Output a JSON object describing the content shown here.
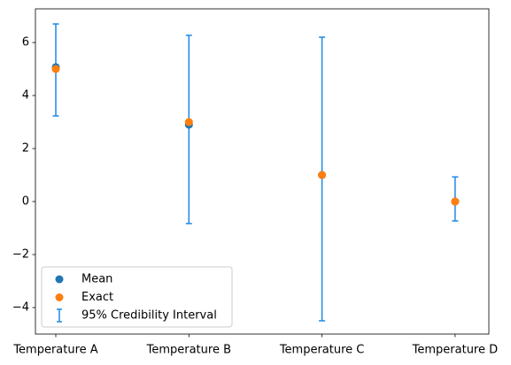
{
  "chart_data": {
    "type": "errorbar",
    "categories": [
      "Temperature A",
      "Temperature B",
      "Temperature C",
      "Temperature D"
    ],
    "series": [
      {
        "name": "95% Credibility Interval",
        "color": "#1e88e5",
        "lower": [
          3.23,
          -0.83,
          -4.5,
          -0.73
        ],
        "upper": [
          6.7,
          6.27,
          6.2,
          0.93
        ]
      },
      {
        "name": "Mean",
        "color": "#1f77b4",
        "values": [
          5.07,
          2.9,
          1.0,
          0.0
        ]
      },
      {
        "name": "Exact",
        "color": "#ff7f0e",
        "values": [
          5.0,
          3.0,
          1.0,
          0.0
        ]
      }
    ],
    "legend_order": [
      1,
      2,
      0
    ],
    "legend": "lower left",
    "ylim": [
      -5.0,
      7.27
    ],
    "yticks": [
      {
        "value": -4,
        "label": "−4"
      },
      {
        "value": -2,
        "label": "−2"
      },
      0,
      2,
      4,
      6
    ]
  }
}
